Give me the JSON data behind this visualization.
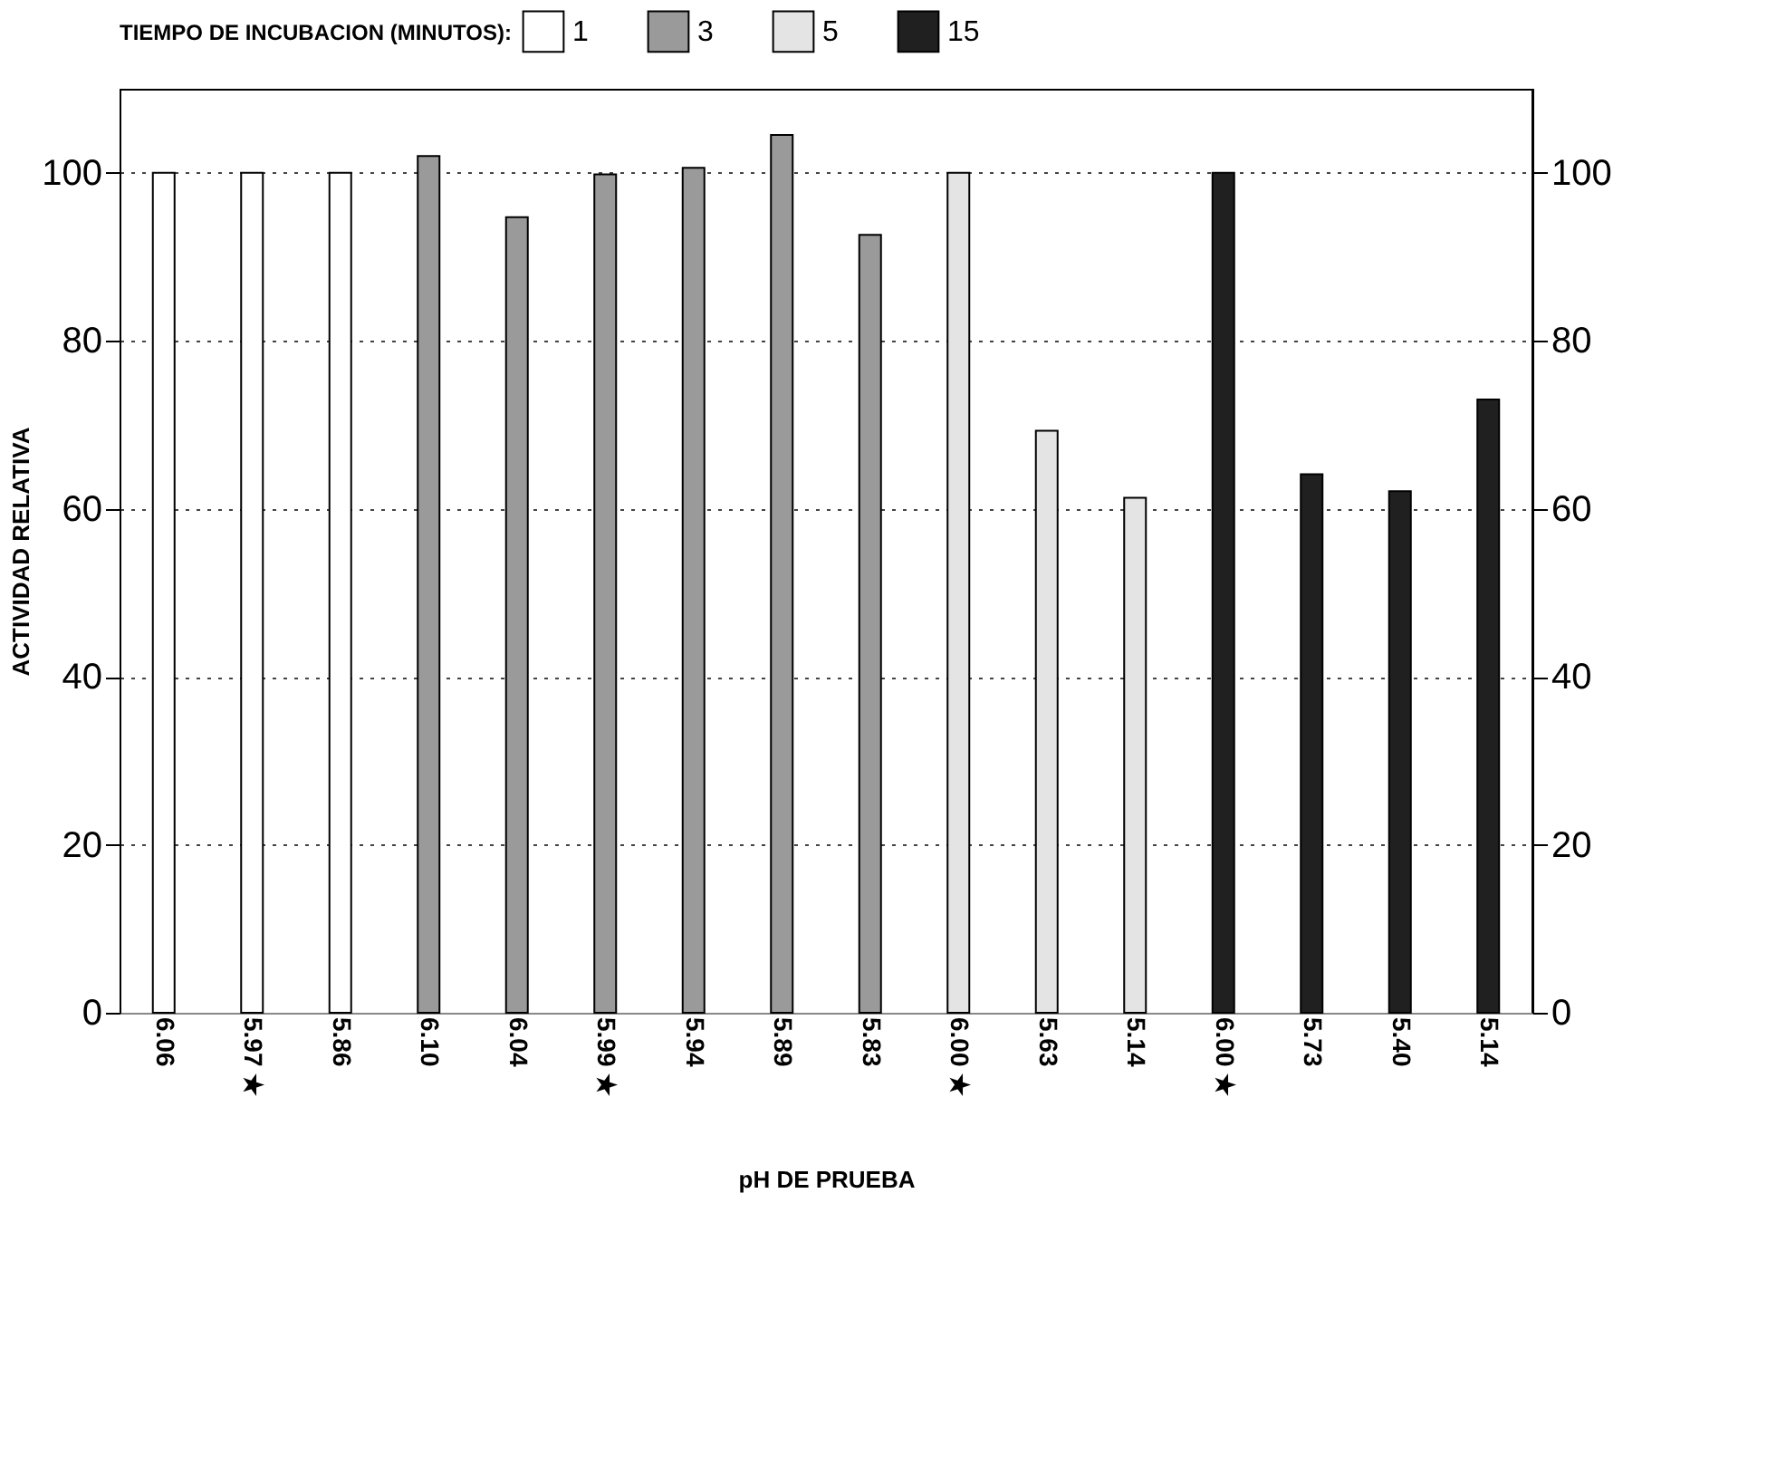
{
  "chart_data": {
    "type": "bar",
    "xlabel": "pH DE PRUEBA",
    "ylabel": "ACTIVIDAD RELATIVA",
    "legend_title": "TIEMPO DE INCUBACION (MINUTOS):",
    "categories": [
      "6.06",
      "5.97 ★",
      "5.86",
      "6.10",
      "6.04",
      "5.99 ★",
      "5.94",
      "5.89",
      "5.83",
      "6.00 ★",
      "5.63",
      "5.14",
      "6.00 ★",
      "5.73",
      "5.40",
      "5.14"
    ],
    "series": [
      {
        "name": "1",
        "color": "#ffffff",
        "values": [
          100,
          100,
          100,
          null,
          null,
          null,
          null,
          null,
          null,
          null,
          null,
          null,
          null,
          null,
          null,
          null
        ]
      },
      {
        "name": "3",
        "color": "#9a9a9a",
        "values": [
          null,
          null,
          null,
          102,
          94.7,
          99.8,
          100.6,
          104.5,
          92.6,
          null,
          null,
          null,
          null,
          null,
          null,
          null
        ]
      },
      {
        "name": "5",
        "color": "#e4e4e4",
        "values": [
          null,
          null,
          null,
          null,
          null,
          null,
          null,
          null,
          null,
          100,
          69.3,
          61.3,
          null,
          null,
          null,
          null
        ]
      },
      {
        "name": "15",
        "color": "#202020",
        "values": [
          null,
          null,
          null,
          null,
          null,
          null,
          null,
          null,
          null,
          null,
          null,
          null,
          100,
          64.1,
          62.1,
          73
        ]
      }
    ],
    "ylim": [
      0,
      110
    ],
    "yticks": [
      0,
      20,
      40,
      60,
      80,
      100
    ],
    "y2lim": [
      0,
      110
    ],
    "y2ticks": [
      0,
      20,
      40,
      60,
      80,
      100
    ],
    "grid": "y",
    "legend": "top"
  }
}
